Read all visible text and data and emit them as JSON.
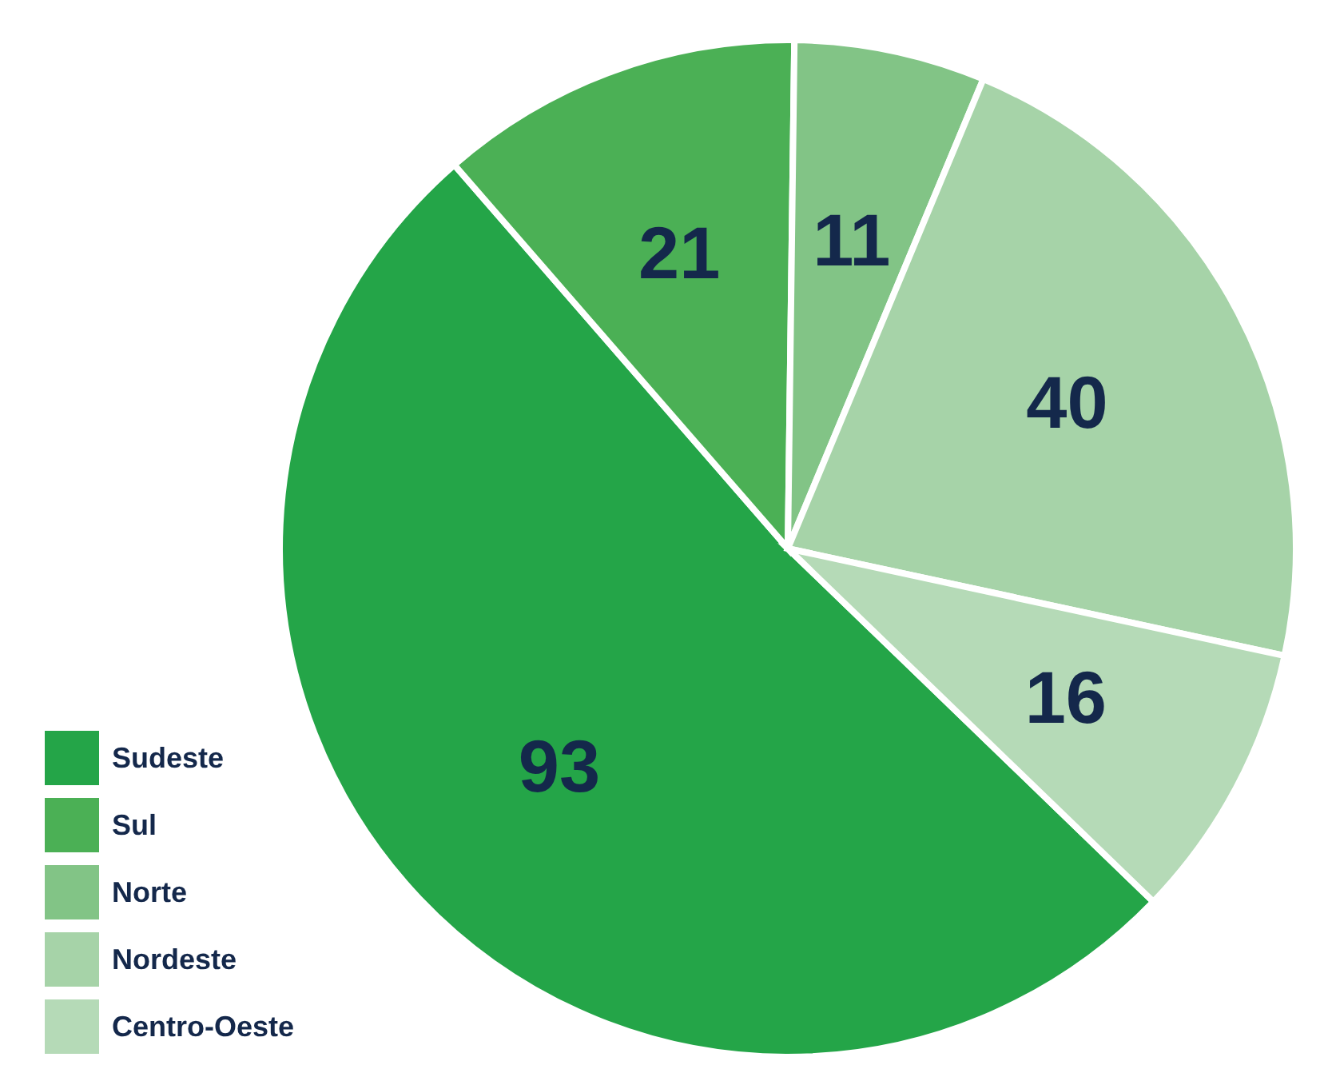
{
  "chart_data": {
    "type": "pie",
    "categories": [
      "Sudeste",
      "Sul",
      "Norte",
      "Nordeste",
      "Centro-Oeste"
    ],
    "values": [
      93,
      21,
      11,
      40,
      16
    ],
    "colors": [
      "#24a548",
      "#4bb055",
      "#82c486",
      "#a6d3a8",
      "#b5dab7"
    ],
    "data_labels": true,
    "legend": "bottom left"
  }
}
